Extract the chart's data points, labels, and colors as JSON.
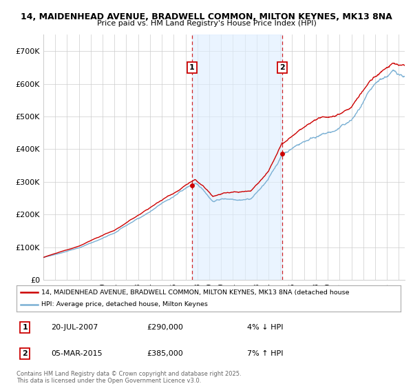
{
  "title_line1": "14, MAIDENHEAD AVENUE, BRADWELL COMMON, MILTON KEYNES, MK13 8NA",
  "title_line2": "Price paid vs. HM Land Registry's House Price Index (HPI)",
  "ylim": [
    0,
    750000
  ],
  "yticks": [
    0,
    100000,
    200000,
    300000,
    400000,
    500000,
    600000,
    700000
  ],
  "ytick_labels": [
    "£0",
    "£100K",
    "£200K",
    "£300K",
    "£400K",
    "£500K",
    "£600K",
    "£700K"
  ],
  "xmin": 1995.0,
  "xmax": 2025.5,
  "sale1_date": 2007.55,
  "sale1_price": 290000,
  "sale2_date": 2015.17,
  "sale2_price": 385000,
  "red_line_color": "#cc0000",
  "blue_line_color": "#7ab0d4",
  "shade_color": "#ddeeff",
  "grid_color": "#cccccc",
  "background_color": "#ffffff",
  "legend_label_red": "14, MAIDENHEAD AVENUE, BRADWELL COMMON, MILTON KEYNES, MK13 8NA (detached house",
  "legend_label_blue": "HPI: Average price, detached house, Milton Keynes",
  "annotation1_date": "20-JUL-2007",
  "annotation1_price": "£290,000",
  "annotation1_hpi": "4% ↓ HPI",
  "annotation2_date": "05-MAR-2015",
  "annotation2_price": "£385,000",
  "annotation2_hpi": "7% ↑ HPI",
  "footer": "Contains HM Land Registry data © Crown copyright and database right 2025.\nThis data is licensed under the Open Government Licence v3.0."
}
